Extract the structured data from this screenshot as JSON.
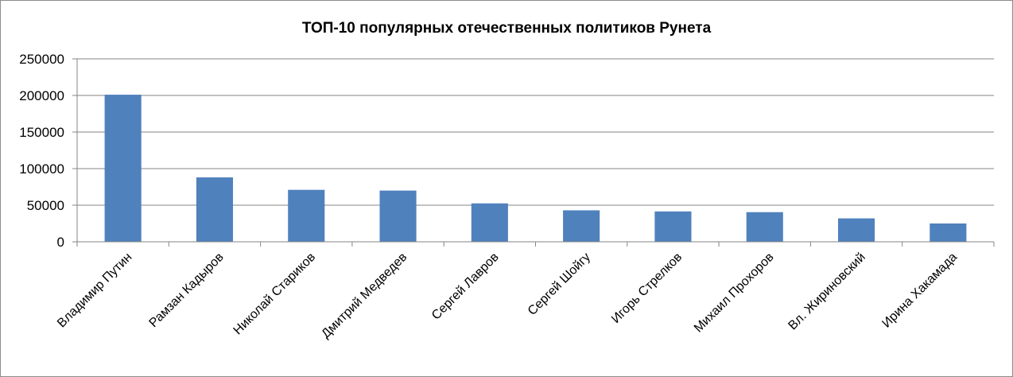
{
  "chart_data": {
    "type": "bar",
    "title": "ТОП-10 популярных  отечественных политиков  Рунета",
    "categories": [
      "Владимир Путин",
      "Рамзан Кадыров",
      "Николай Стариков",
      "Дмитрий Медведев",
      "Сергей Лавров",
      "Сергей Шойгу",
      "Игорь Стрелков",
      "Михаил Прохоров",
      "Вл. Жириновский",
      "Ирина Хакамада"
    ],
    "values": [
      201000,
      88000,
      71000,
      70000,
      52500,
      43000,
      41500,
      40500,
      32000,
      25000
    ],
    "ylim": [
      0,
      250000
    ],
    "yticks": [
      "0",
      "50000",
      "100000",
      "150000",
      "200000",
      "250000"
    ],
    "grid": true,
    "legend": "none",
    "colors": {
      "bar": "#4f81bd",
      "grid": "#868686",
      "axis": "#868686"
    }
  }
}
